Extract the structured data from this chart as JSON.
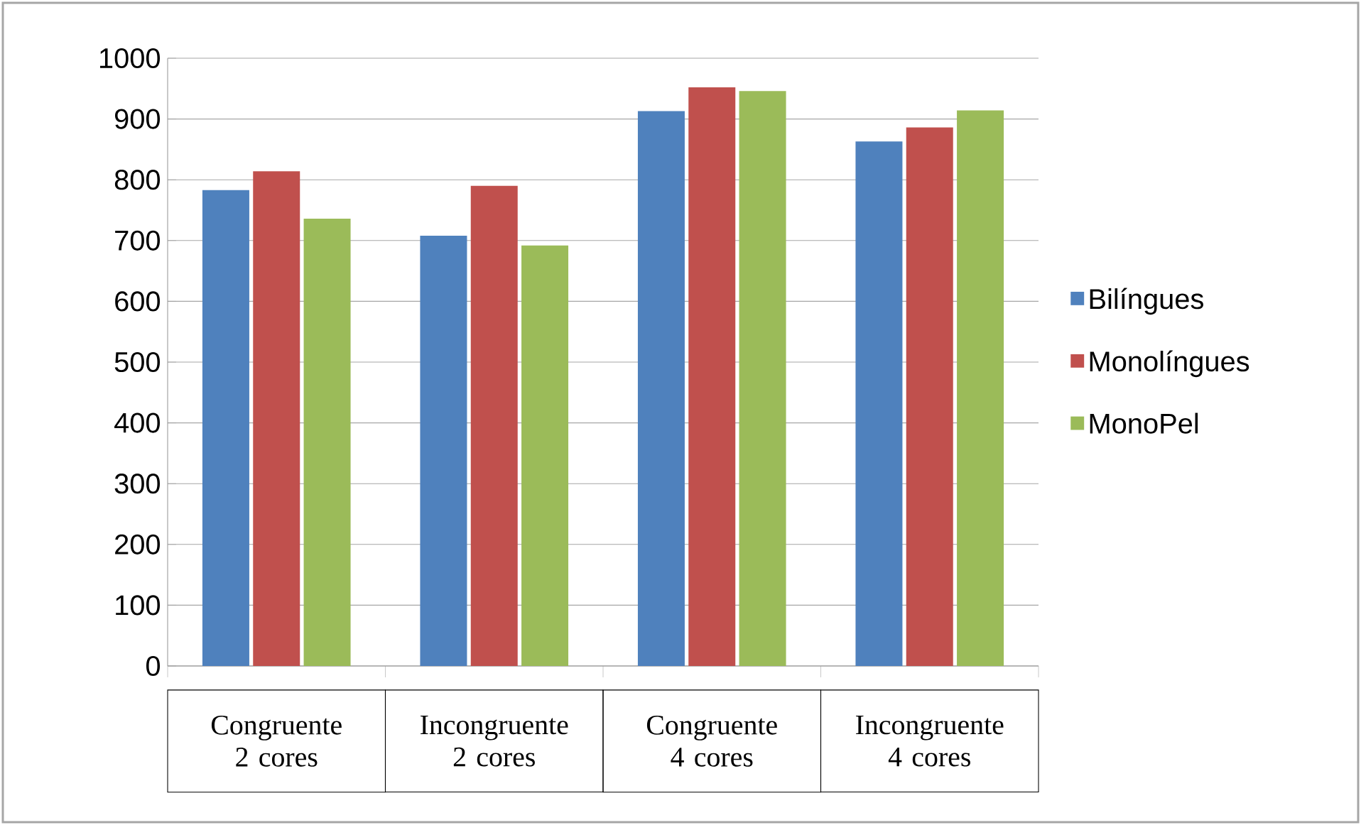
{
  "chart_data": {
    "type": "bar",
    "categories": [
      "Congruente 2 cores",
      "Incongruente 2 cores",
      "Congruente 4 cores",
      "Incongruente 4 cores"
    ],
    "series": [
      {
        "name": "Bilíngues",
        "color": "#4f81bd",
        "values": [
          783,
          708,
          913,
          863
        ]
      },
      {
        "name": "Monolíngues",
        "color": "#c0504d",
        "values": [
          814,
          790,
          952,
          886
        ]
      },
      {
        "name": "MonoPel",
        "color": "#9bbb59",
        "values": [
          736,
          692,
          946,
          914
        ]
      }
    ],
    "ylim": [
      0,
      1000
    ],
    "yticks": [
      0,
      100,
      200,
      300,
      400,
      500,
      600,
      700,
      800,
      900,
      1000
    ],
    "grid": "y",
    "legend": "right"
  }
}
